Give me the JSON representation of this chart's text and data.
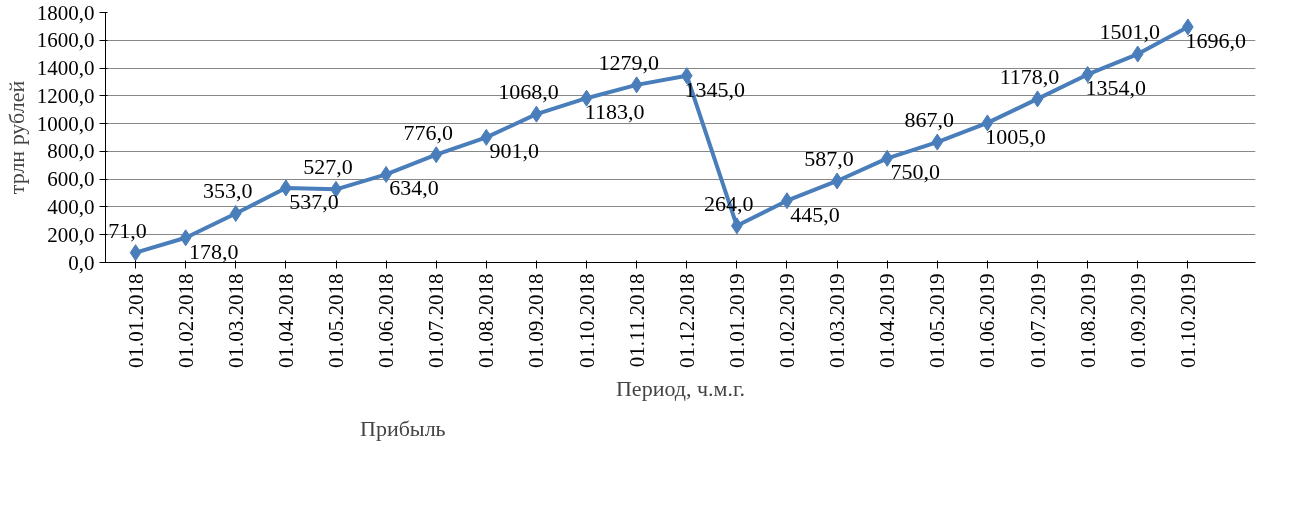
{
  "chart_data": {
    "type": "line",
    "xlabel": "Период, ч.м.г.",
    "ylabel": "трлн рублей",
    "categories": [
      "01.01.2018",
      "01.02.2018",
      "01.03.2018",
      "01.04.2018",
      "01.05.2018",
      "01.06.2018",
      "01.07.2018",
      "01.08.2018",
      "01.09.2018",
      "01.10.2018",
      "01.11.2018",
      "01.12.2018",
      "01.01.2019",
      "01.02.2019",
      "01.03.2019",
      "01.04.2019",
      "01.05.2019",
      "01.06.2019",
      "01.07.2019",
      "01.08.2019",
      "01.09.2019",
      "01.10.2019"
    ],
    "series": [
      {
        "name": "Прибыль",
        "color": "#4a7ebb",
        "values": [
          71,
          178,
          353,
          537,
          527,
          634,
          776,
          901,
          1068,
          1183,
          1279,
          1345,
          264,
          445,
          587,
          750,
          867,
          1005,
          1178,
          1354,
          1501,
          1696
        ],
        "value_labels": [
          "71,0",
          "178,0",
          "353,0",
          "537,0",
          "527,0",
          "634,0",
          "776,0",
          "901,0",
          "1068,0",
          "1183,0",
          "1279,0",
          "1345,0",
          "264,0",
          "445,0",
          "587,0",
          "750,0",
          "867,0",
          "1005,0",
          "1178,0",
          "1354,0",
          "1501,0",
          "1696,0"
        ]
      }
    ],
    "ylim": [
      0,
      1800
    ],
    "yticks": [
      {
        "value": 0,
        "label": "0,0"
      },
      {
        "value": 200,
        "label": "200,0"
      },
      {
        "value": 400,
        "label": "400,0"
      },
      {
        "value": 600,
        "label": "600,0"
      },
      {
        "value": 800,
        "label": "800,0"
      },
      {
        "value": 1000,
        "label": "1000,0"
      },
      {
        "value": 1200,
        "label": "1200,0"
      },
      {
        "value": 1400,
        "label": "1400,0"
      },
      {
        "value": 1600,
        "label": "1600,0"
      },
      {
        "value": 1800,
        "label": "1800,0"
      }
    ],
    "grid": "y",
    "legend": "bottom left",
    "marker": "diamond",
    "line_style": "solid"
  }
}
